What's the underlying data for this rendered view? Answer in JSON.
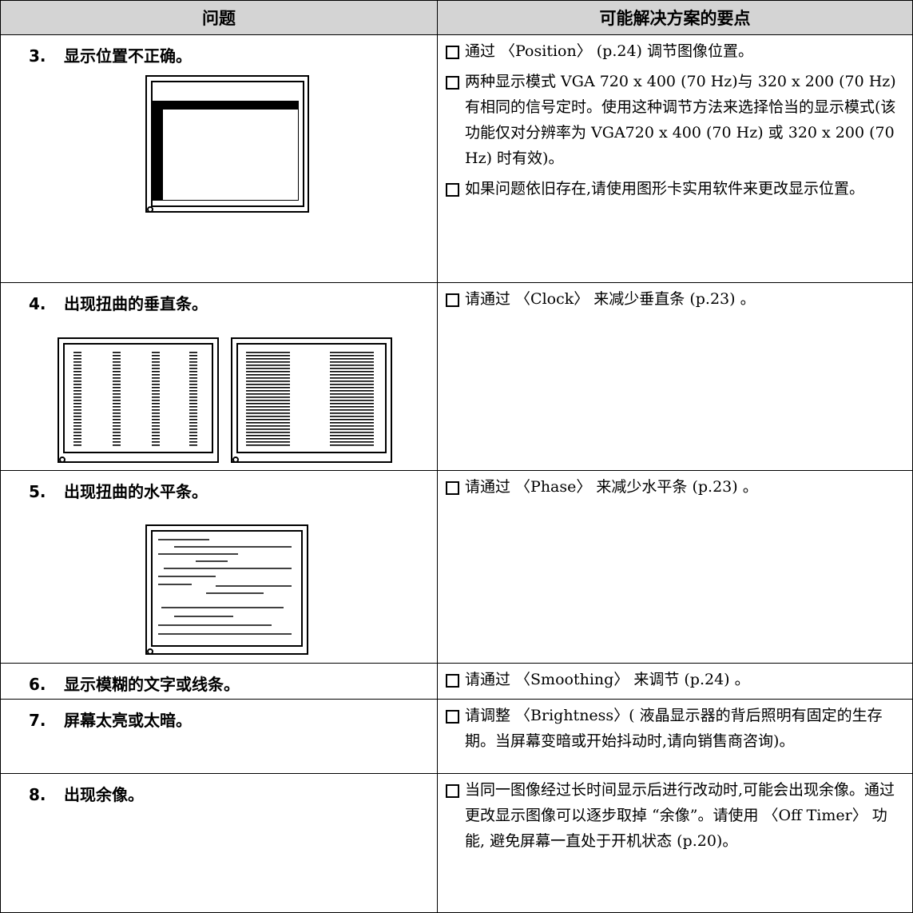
{
  "header": {
    "problem": "问题",
    "solution": "可能解决方案的要点"
  },
  "rows": [
    {
      "number": "3.",
      "title": "显示位置不正确。",
      "solutions": [
        "通过 〈Position〉 (p.24) 调节图像位置。",
        "两种显示模式 VGA 720 x 400 (70 Hz)与 320 x 200 (70 Hz) 有相同的信号定时。使用这种调节方法来选择恰当的显示模式(该功能仅对分辨率为 VGA720 x 400 (70 Hz) 或 320 x 200 (70 Hz) 时有效)。",
        "如果问题依旧存在,请使用图形卡实用软件来更改显示位置。"
      ]
    },
    {
      "number": "4.",
      "title": "出现扭曲的垂直条。",
      "solutions": [
        "请通过 〈Clock〉 来减少垂直条 (p.23) 。"
      ]
    },
    {
      "number": "5.",
      "title": "出现扭曲的水平条。",
      "solutions": [
        "请通过 〈Phase〉 来减少水平条 (p.23) 。"
      ]
    },
    {
      "number": "6.",
      "title": "显示模糊的文字或线条。",
      "solutions": [
        "请通过 〈Smoothing〉 来调节 (p.24) 。"
      ]
    },
    {
      "number": "7.",
      "title": "屏幕太亮或太暗。",
      "solutions": [
        "请调整 〈Brightness〉( 液晶显示器的背后照明有固定的生存期。当屏幕变暗或开始抖动时,请向销售商咨询)。"
      ]
    },
    {
      "number": "8.",
      "title": "出现余像。",
      "solutions": [
        "当同一图像经过长时间显示后进行改动时,可能会出现余像。通过更改显示图像可以逐步取掉 “余像”。请使用 〈Off Timer〉 功能, 避免屏幕一直处于开机状态 (p.20)。"
      ]
    }
  ]
}
